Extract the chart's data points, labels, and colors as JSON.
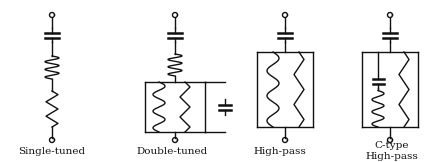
{
  "bg_color": "#ffffff",
  "line_color": "#111111",
  "line_width": 1.0,
  "labels": [
    "Single-tuned",
    "Double-tuned",
    "High-pass",
    "C-type\nHigh-pass"
  ],
  "label_fontsize": 7.5,
  "fig_width": 4.45,
  "fig_height": 1.62,
  "dpi": 100
}
